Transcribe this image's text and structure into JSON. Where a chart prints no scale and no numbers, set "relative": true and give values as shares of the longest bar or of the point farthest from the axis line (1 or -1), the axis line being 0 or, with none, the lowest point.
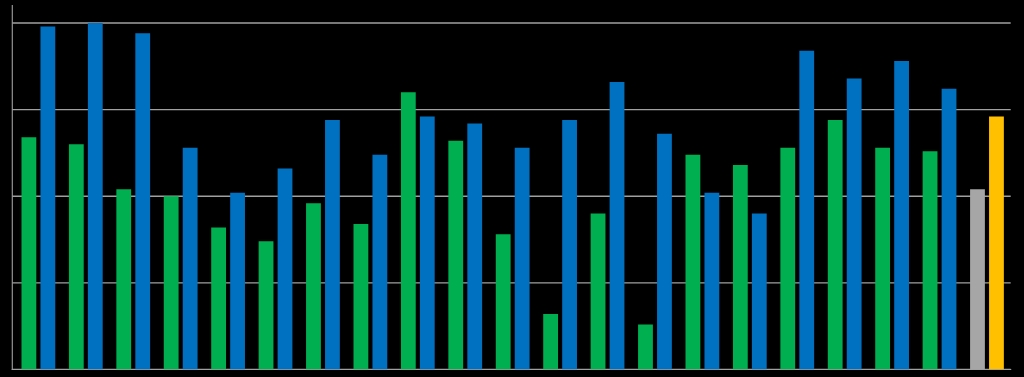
{
  "chart_data": {
    "type": "bar",
    "relative": true,
    "grid": "y",
    "categories": [
      null,
      null,
      null,
      null,
      null,
      null,
      null,
      null,
      null,
      null,
      null,
      null,
      null,
      null,
      null,
      null,
      null,
      null,
      null,
      null,
      null
    ],
    "series": [
      {
        "color": "#00b050",
        "colors": [
          null,
          null,
          null,
          null,
          null,
          null,
          null,
          null,
          null,
          null,
          null,
          null,
          null,
          null,
          null,
          null,
          null,
          null,
          null,
          null,
          "#a6a6a6"
        ],
        "values": [
          0.67,
          0.65,
          0.52,
          0.5,
          0.41,
          0.37,
          0.48,
          0.42,
          0.8,
          0.66,
          0.39,
          0.16,
          0.45,
          0.13,
          0.62,
          0.59,
          0.64,
          0.72,
          0.64,
          0.63,
          0.52
        ]
      },
      {
        "color": "#0070c0",
        "colors": [
          null,
          null,
          null,
          null,
          null,
          null,
          null,
          null,
          null,
          null,
          null,
          null,
          null,
          null,
          null,
          null,
          null,
          null,
          null,
          null,
          "#ffc000"
        ],
        "values": [
          0.99,
          1,
          0.97,
          0.64,
          0.51,
          0.58,
          0.72,
          0.62,
          0.73,
          0.71,
          0.64,
          0.72,
          0.83,
          0.68,
          0.51,
          0.45,
          0.92,
          0.84,
          0.89,
          0.81,
          0.73
        ]
      }
    ]
  }
}
